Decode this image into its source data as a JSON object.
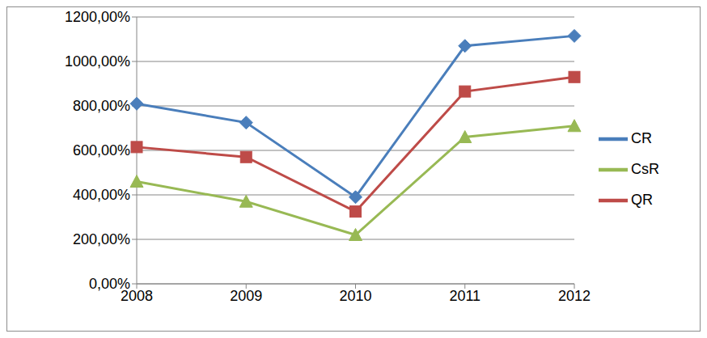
{
  "chart_data": {
    "type": "line",
    "categories": [
      "2008",
      "2009",
      "2010",
      "2011",
      "2012"
    ],
    "series": [
      {
        "name": "CR",
        "color": "#4a7ebb",
        "marker": "diamond",
        "values": [
          810,
          725,
          390,
          1070,
          1115
        ]
      },
      {
        "name": "QR",
        "color": "#be4b48",
        "marker": "square",
        "values": [
          615,
          570,
          325,
          865,
          930
        ]
      },
      {
        "name": "CsR",
        "color": "#98b954",
        "marker": "triangle",
        "values": [
          460,
          370,
          220,
          660,
          710
        ]
      }
    ],
    "ylim": [
      0,
      1200
    ],
    "yticks": [
      {
        "value": 0,
        "label": "0,00%"
      },
      {
        "value": 200,
        "label": "200,00%"
      },
      {
        "value": 400,
        "label": "400,00%"
      },
      {
        "value": 600,
        "label": "600,00%"
      },
      {
        "value": 800,
        "label": "800,00%"
      },
      {
        "value": 1000,
        "label": "1000,00%"
      },
      {
        "value": 1200,
        "label": "1200,00%"
      }
    ],
    "grid": true,
    "legend": "right"
  }
}
